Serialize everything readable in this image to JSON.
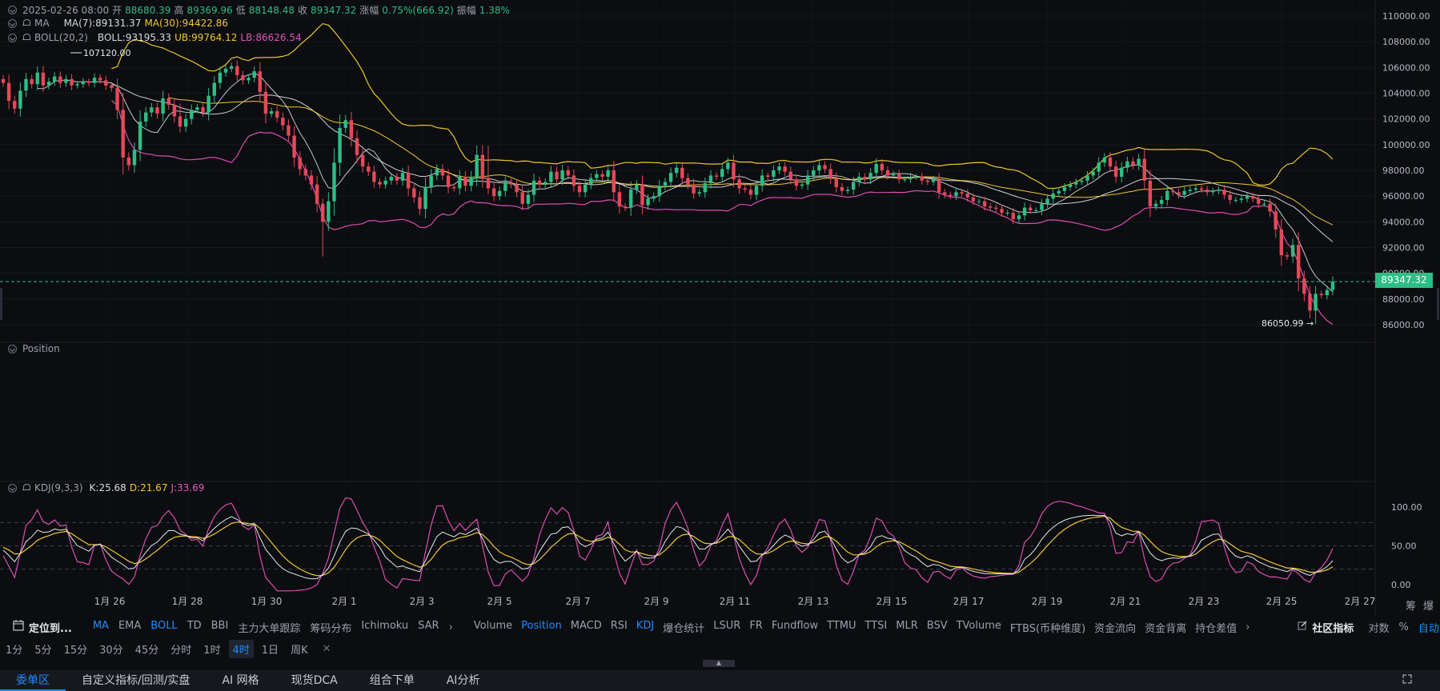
{
  "ohlc": {
    "date": "2025-02-26 08:00",
    "open_label": "开",
    "open": "88680.39",
    "high_label": "高",
    "high": "89369.96",
    "low_label": "低",
    "low": "88148.48",
    "close_label": "收",
    "close": "89347.32",
    "change_label": "涨幅",
    "change": "0.75%(666.92)",
    "amp_label": "振幅",
    "amp": "1.38%"
  },
  "ma": {
    "name": "MA",
    "ma7": "MA(7):89131.37",
    "ma30": "MA(30):94422.86"
  },
  "boll": {
    "name": "BOLL(20,2)",
    "mid": "BOLL:93195.33",
    "ub": "UB:99764.12",
    "lb": "LB:86626.54"
  },
  "position_label": "Position",
  "kdj": {
    "name": "KDJ(9,3,3)",
    "k": "K:25.68",
    "d": "D:21.67",
    "j": "J:33.69"
  },
  "main_axis": [
    "110000.00",
    "108000.00",
    "106000.00",
    "104000.00",
    "102000.00",
    "100000.00",
    "98000.00",
    "96000.00",
    "94000.00",
    "92000.00",
    "90000.00",
    "88000.00",
    "86000.00"
  ],
  "current_price": "89347.32",
  "high_marker": "107120.00",
  "low_marker": "86050.99 →",
  "kdj_axis": [
    "100.00",
    "50.00",
    "0.00"
  ],
  "date_axis": [
    "1月 26",
    "1月 28",
    "1月 30",
    "2月 1",
    "2月 3",
    "2月 5",
    "2月 7",
    "2月 9",
    "2月 11",
    "2月 13",
    "2月 15",
    "2月 17",
    "2月 19",
    "2月 21",
    "2月 23",
    "2月 25",
    "2月 27"
  ],
  "right_edge_labels": [
    "筹",
    "爆"
  ],
  "toolbar1": {
    "locate": "定位到...",
    "main_indicators": [
      "MA",
      "EMA",
      "BOLL",
      "TD",
      "BBI",
      "主力大单跟踪",
      "筹码分布",
      "Ichimoku",
      "SAR"
    ],
    "sub_indicators": [
      "Volume",
      "Position",
      "MACD",
      "RSI",
      "KDJ",
      "爆仓统计",
      "LSUR",
      "FR",
      "Fundflow",
      "TTMU",
      "TTSI",
      "MLR",
      "BSV",
      "TVolume",
      "FTBS(币种维度)",
      "资金流向",
      "资金背离",
      "持仓差值"
    ],
    "community": "社区指标",
    "log_label": "对数",
    "pct_label": "%",
    "auto_label": "自动"
  },
  "timeframes": [
    "1分",
    "5分",
    "15分",
    "30分",
    "45分",
    "分时",
    "1时",
    "4时",
    "1日",
    "周K"
  ],
  "active_timeframe": "4时",
  "bottom_tabs": [
    "委单区",
    "自定义指标/回测/实盘",
    "AI 网格",
    "现货DCA",
    "组合下单",
    "AI分析"
  ],
  "chart_data": {
    "type": "candlestick",
    "x_range": [
      "2025-01-25",
      "2025-02-26"
    ],
    "y_range": [
      86000,
      110000
    ],
    "closes": [
      104800,
      103400,
      102800,
      104200,
      105100,
      104700,
      105600,
      104600,
      104900,
      105300,
      104800,
      105100,
      104600,
      104700,
      104900,
      104800,
      105200,
      105000,
      104600,
      104400,
      102700,
      99000,
      98400,
      99600,
      101800,
      102500,
      102900,
      102400,
      103600,
      103100,
      102200,
      101400,
      102000,
      102700,
      102900,
      102500,
      103800,
      104800,
      105600,
      105900,
      106100,
      105400,
      105000,
      105200,
      105700,
      104100,
      102400,
      102600,
      102100,
      101500,
      100700,
      99000,
      98100,
      97600,
      96900,
      95400,
      94000,
      95600,
      98600,
      101300,
      101900,
      100500,
      99200,
      98300,
      97900,
      97100,
      96900,
      97200,
      97500,
      97200,
      97800,
      96600,
      95900,
      95000,
      96700,
      97600,
      98100,
      97600,
      96700,
      96600,
      97500,
      96800,
      97500,
      99200,
      97400,
      96600,
      96000,
      96400,
      97100,
      96900,
      96300,
      95400,
      96100,
      97200,
      96900,
      97100,
      97900,
      97300,
      98000,
      97600,
      96800,
      96300,
      96900,
      97400,
      97700,
      97500,
      98000,
      96300,
      95200,
      95100,
      96500,
      96900,
      95300,
      95800,
      96000,
      96800,
      97100,
      97800,
      98200,
      97400,
      96900,
      96200,
      96300,
      97000,
      97600,
      97500,
      98100,
      98600,
      97300,
      96600,
      96500,
      96100,
      96800,
      97600,
      97500,
      98000,
      98300,
      97900,
      97300,
      96800,
      96900,
      97600,
      98000,
      98400,
      98100,
      97400,
      96700,
      96400,
      96500,
      97100,
      97500,
      97300,
      97800,
      98500,
      98000,
      97600,
      97700,
      97300,
      97300,
      97500,
      97500,
      97200,
      97100,
      97300,
      96300,
      96100,
      96000,
      96300,
      96200,
      95900,
      95600,
      95600,
      95200,
      95100,
      95000,
      94700,
      94700,
      94200,
      94500,
      95100,
      94900,
      94900,
      95400,
      95800,
      96200,
      96400,
      96700,
      96900,
      97100,
      97200,
      97600,
      97900,
      98600,
      99000,
      98300,
      97500,
      98200,
      98700,
      98400,
      98900,
      97200,
      95200,
      95400,
      95700,
      96400,
      96300,
      96100,
      96400,
      96500,
      96600,
      96500,
      96300,
      96400,
      96500,
      96100,
      95700,
      95700,
      95800,
      96000,
      95800,
      95400,
      95400,
      94800,
      93400,
      91400,
      91300,
      92200,
      89600,
      88400,
      87100,
      88400,
      88300,
      88700,
      89347
    ]
  }
}
